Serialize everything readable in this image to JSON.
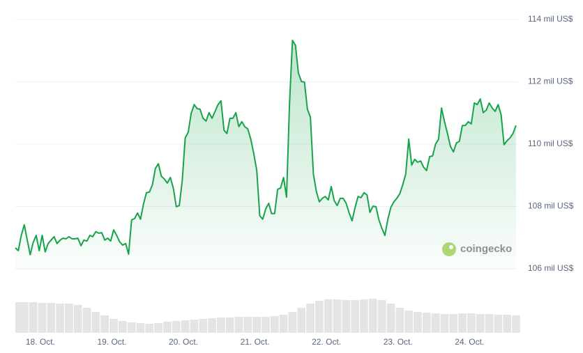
{
  "chart_data": {
    "type": "line",
    "x": [
      17.65,
      17.692,
      17.733,
      17.775,
      17.817,
      17.858,
      17.9,
      17.942,
      17.983,
      18.025,
      18.067,
      18.108,
      18.15,
      18.192,
      18.233,
      18.275,
      18.317,
      18.358,
      18.4,
      18.442,
      18.483,
      18.525,
      18.567,
      18.608,
      18.65,
      18.692,
      18.733,
      18.775,
      18.817,
      18.858,
      18.9,
      18.942,
      18.983,
      19.025,
      19.067,
      19.108,
      19.15,
      19.192,
      19.233,
      19.275,
      19.317,
      19.358,
      19.4,
      19.442,
      19.483,
      19.525,
      19.567,
      19.608,
      19.65,
      19.692,
      19.733,
      19.775,
      19.817,
      19.858,
      19.9,
      19.942,
      19.983,
      20.025,
      20.067,
      20.108,
      20.15,
      20.192,
      20.233,
      20.275,
      20.317,
      20.358,
      20.4,
      20.442,
      20.483,
      20.525,
      20.567,
      20.608,
      20.65,
      20.692,
      20.733,
      20.775,
      20.817,
      20.858,
      20.9,
      20.942,
      20.983,
      21.025,
      21.067,
      21.108,
      21.15,
      21.192,
      21.233,
      21.275,
      21.317,
      21.358,
      21.4,
      21.442,
      21.483,
      21.525,
      21.567,
      21.608,
      21.65,
      21.692,
      21.733,
      21.775,
      21.817,
      21.858,
      21.9,
      21.942,
      21.983,
      22.025,
      22.067,
      22.108,
      22.15,
      22.192,
      22.233,
      22.275,
      22.317,
      22.358,
      22.4,
      22.442,
      22.483,
      22.525,
      22.567,
      22.608,
      22.65,
      22.692,
      22.733,
      22.775,
      22.817,
      22.858,
      22.9,
      22.942,
      22.983,
      23.025,
      23.067,
      23.108,
      23.15,
      23.192,
      23.233,
      23.275,
      23.317,
      23.358,
      23.4,
      23.442,
      23.483,
      23.525,
      23.567,
      23.608,
      23.65,
      23.692,
      23.733,
      23.775,
      23.817,
      23.858,
      23.9,
      23.942,
      23.983,
      24.025,
      24.067,
      24.108,
      24.15,
      24.192,
      24.233,
      24.275,
      24.317,
      24.358,
      24.4,
      24.442,
      24.483,
      24.525,
      24.567,
      24.608,
      24.65
    ],
    "values": [
      106.67,
      106.58,
      107.07,
      107.41,
      106.92,
      106.45,
      106.85,
      107.07,
      106.58,
      107.07,
      106.54,
      106.81,
      106.92,
      107.03,
      106.81,
      106.92,
      106.98,
      106.96,
      107.03,
      106.96,
      106.96,
      106.98,
      106.74,
      106.92,
      106.89,
      107.07,
      107.03,
      107.19,
      107.14,
      107.16,
      106.92,
      106.98,
      106.89,
      107.25,
      107.07,
      106.87,
      106.76,
      106.81,
      106.47,
      107.57,
      107.61,
      107.79,
      107.59,
      108.08,
      108.44,
      108.46,
      108.7,
      109.22,
      109.37,
      108.97,
      108.88,
      108.75,
      108.93,
      108.59,
      107.99,
      108.03,
      108.82,
      110.2,
      110.38,
      110.98,
      111.27,
      111.14,
      111.12,
      110.83,
      110.74,
      111.01,
      110.83,
      111.05,
      111.27,
      111.39,
      110.45,
      110.34,
      110.83,
      110.83,
      111.01,
      110.56,
      110.72,
      110.56,
      110.49,
      110.16,
      109.71,
      109.15,
      107.7,
      107.59,
      107.92,
      108.1,
      107.77,
      107.77,
      108.55,
      108.59,
      108.93,
      108.3,
      111.27,
      113.33,
      113.17,
      112.28,
      112.01,
      111.99,
      111.12,
      110.87,
      109.04,
      108.48,
      108.15,
      108.26,
      108.32,
      108.21,
      108.64,
      108.19,
      108.03,
      108.26,
      108.26,
      108.1,
      107.79,
      107.54,
      107.97,
      108.32,
      108.28,
      108.44,
      108.37,
      107.81,
      108.01,
      107.99,
      107.57,
      107.3,
      107.07,
      107.59,
      107.97,
      108.15,
      108.26,
      108.41,
      108.7,
      109.04,
      110.16,
      109.33,
      109.51,
      109.42,
      109.46,
      109.26,
      109.15,
      109.6,
      109.62,
      110.0,
      110.16,
      111.16,
      110.72,
      110.34,
      109.93,
      109.75,
      110.04,
      110.09,
      110.6,
      110.6,
      110.72,
      110.65,
      111.32,
      111.27,
      111.45,
      111.01,
      111.09,
      111.32,
      111.16,
      111.05,
      111.27,
      110.94,
      109.98,
      110.11,
      110.2,
      110.34,
      110.6
    ],
    "color": "#16a34a",
    "xlim": [
      17.65,
      24.67
    ],
    "xticks": [
      {
        "value": 18,
        "label": "18. Oct."
      },
      {
        "value": 19,
        "label": "19. Oct."
      },
      {
        "value": 20,
        "label": "20. Oct."
      },
      {
        "value": 21,
        "label": "21. Oct."
      },
      {
        "value": 22,
        "label": "22. Oct."
      },
      {
        "value": 23,
        "label": "23. Oct."
      },
      {
        "value": 24,
        "label": "24. Oct."
      }
    ],
    "ylim": [
      106,
      114
    ],
    "yticks": [
      {
        "value": 106,
        "label": "106 mil US$"
      },
      {
        "value": 108,
        "label": "108 mil US$"
      },
      {
        "value": 110,
        "label": "110 mil US$"
      },
      {
        "value": 112,
        "label": "112 mil US$"
      },
      {
        "value": 114,
        "label": "114 mil US$"
      }
    ],
    "grid": true,
    "volume": {
      "x": [
        17.65,
        17.775,
        17.9,
        18.025,
        18.15,
        18.275,
        18.4,
        18.525,
        18.65,
        18.775,
        18.9,
        19.025,
        19.15,
        19.275,
        19.4,
        19.525,
        19.65,
        19.775,
        19.9,
        20.025,
        20.15,
        20.275,
        20.4,
        20.525,
        20.65,
        20.775,
        20.9,
        21.025,
        21.15,
        21.275,
        21.4,
        21.525,
        21.65,
        21.775,
        21.9,
        22.025,
        22.15,
        22.275,
        22.4,
        22.525,
        22.65,
        22.775,
        22.9,
        23.025,
        23.15,
        23.275,
        23.4,
        23.525,
        23.65,
        23.775,
        23.9,
        24.025,
        24.15,
        24.275,
        24.4,
        24.525,
        24.65
      ],
      "values": [
        44,
        44,
        44,
        43,
        43,
        42,
        42,
        40,
        36,
        30,
        25,
        20,
        17,
        15,
        14,
        13,
        14,
        16,
        17,
        18,
        19,
        20,
        21,
        22,
        22,
        23,
        23,
        23,
        23,
        24,
        26,
        30,
        36,
        42,
        46,
        48,
        48,
        47,
        47,
        48,
        49,
        47,
        42,
        36,
        32,
        30,
        29,
        28,
        27,
        27,
        28,
        28,
        27,
        27,
        26,
        26,
        25
      ],
      "lim": [
        0,
        50
      ],
      "color": "#e4e4e7"
    },
    "watermark": "coingecko"
  }
}
